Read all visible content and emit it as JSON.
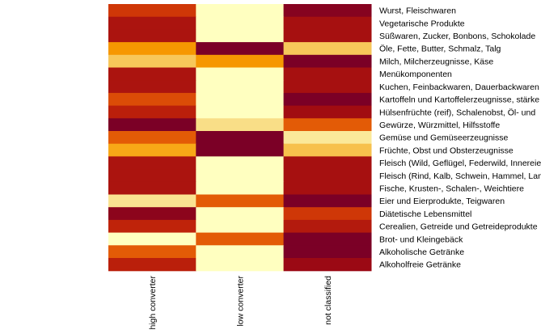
{
  "chart_data": {
    "type": "heatmap",
    "columns": [
      "high converter",
      "low converter",
      "not classified"
    ],
    "rows": [
      "Wurst, Fleischwaren",
      "Vegetarische Produkte",
      "Süßwaren, Zucker, Bonbons, Schokolade",
      "Öle, Fette, Butter, Schmalz, Talg",
      "Milch, Milcherzeugnisse, Käse",
      "Menükomponenten",
      "Kuchen, Feinbackwaren, Dauerbackwaren",
      "Kartoffeln und Kartoffelerzeugnisse, stärke",
      "Hülsenfrüchte (reif), Schalenobst, Öl- und",
      "Gewürze, Würzmittel, Hilfsstoffe",
      "Gemüse und Gemüseerzeugnisse",
      "Früchte, Obst und Obsterzeugnisse",
      "Fleisch (Wild, Geflügel, Federwild, Innereien",
      "Fleisch (Rind, Kalb, Schwein, Hammel, Lamm",
      "Fische, Krusten-, Schalen-, Weichtiere",
      "Eier und Eierprodukte, Teigwaren",
      "Diätetische Lebensmittel",
      "Cerealien, Getreide und Getreideprodukte",
      "Brot- und Kleingebäck",
      "Alkoholische Getränke",
      "Alkoholfreie Getränke"
    ],
    "values": [
      [
        0.62,
        0.0,
        0.95
      ],
      [
        0.78,
        0.0,
        0.8
      ],
      [
        0.78,
        0.0,
        0.8
      ],
      [
        0.35,
        1.0,
        0.2
      ],
      [
        0.2,
        0.35,
        1.0
      ],
      [
        0.78,
        0.0,
        0.8
      ],
      [
        0.78,
        0.0,
        0.8
      ],
      [
        0.55,
        0.0,
        1.0
      ],
      [
        0.72,
        0.0,
        0.82
      ],
      [
        1.0,
        0.12,
        0.5
      ],
      [
        0.5,
        1.0,
        0.08
      ],
      [
        0.3,
        1.0,
        0.22
      ],
      [
        0.78,
        0.0,
        0.8
      ],
      [
        0.78,
        0.0,
        0.8
      ],
      [
        0.78,
        0.0,
        0.8
      ],
      [
        0.1,
        0.5,
        1.0
      ],
      [
        0.92,
        0.0,
        0.62
      ],
      [
        0.7,
        0.0,
        0.75
      ],
      [
        0.0,
        0.5,
        1.0
      ],
      [
        0.5,
        0.0,
        1.0
      ],
      [
        0.72,
        0.0,
        0.85
      ]
    ],
    "colormap": [
      "#ffffc0",
      "#f7d171",
      "#f89e00",
      "#e35b06",
      "#c72908",
      "#9e0a12",
      "#7b0026"
    ],
    "value_note": "relative cell intensity 0 (light yellow) to 1 (dark red), estimated from colour"
  }
}
